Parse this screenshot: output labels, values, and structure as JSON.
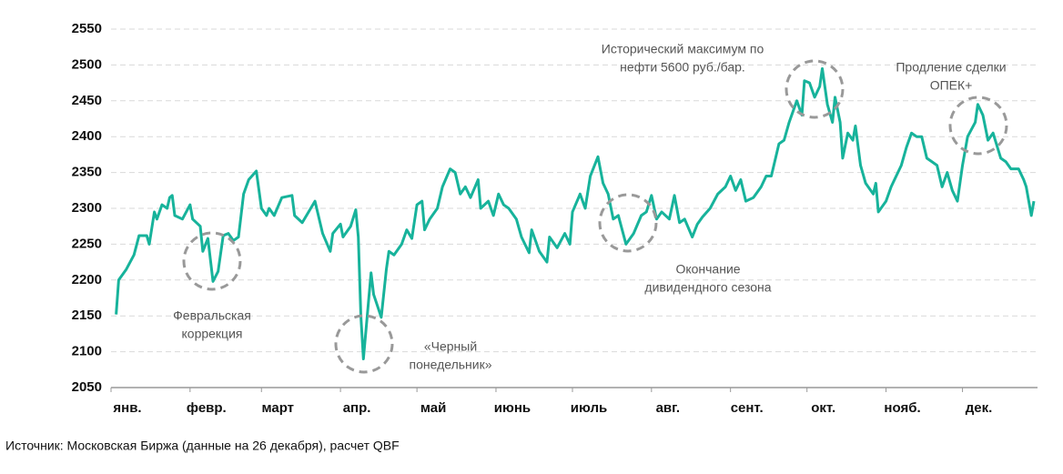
{
  "chart_data": {
    "type": "line",
    "x": [
      2,
      3,
      6,
      9,
      11,
      14,
      15,
      17,
      18,
      20,
      22,
      23,
      24,
      25,
      28,
      31,
      32,
      35,
      36,
      38,
      40,
      42,
      44,
      46,
      48,
      50,
      52,
      54,
      57,
      59,
      61,
      62,
      64,
      67,
      71,
      72,
      75,
      80,
      81,
      83,
      86,
      87,
      90,
      91,
      94,
      96,
      97,
      98,
      99,
      101,
      102,
      103,
      106,
      108,
      109,
      111,
      114,
      116,
      118,
      120,
      122,
      123,
      125,
      128,
      130,
      133,
      135,
      137,
      139,
      141,
      144,
      145,
      148,
      150,
      152,
      154,
      156,
      159,
      161,
      164,
      165,
      168,
      171,
      172,
      175,
      178,
      180,
      181,
      184,
      186,
      188,
      191,
      193,
      195,
      197,
      199,
      202,
      205,
      208,
      210,
      212,
      214,
      216,
      219,
      221,
      223,
      225,
      228,
      230,
      232,
      235,
      238,
      241,
      243,
      245,
      247,
      249,
      252,
      255,
      257,
      259,
      262,
      264,
      266,
      269,
      271,
      272,
      274,
      276,
      278,
      279,
      281,
      283,
      284,
      286,
      287,
      289,
      291,
      292,
      294,
      296,
      299,
      300,
      301,
      304,
      306,
      308,
      310,
      312,
      314,
      316,
      318,
      320,
      322,
      324,
      326,
      328,
      330,
      332,
      334,
      336,
      339,
      340,
      342,
      344,
      346,
      349,
      351,
      353,
      356,
      358,
      359,
      361,
      362
    ],
    "series": [
      {
        "color": "#17b39b",
        "values": [
          2152,
          2200,
          2215,
          2235,
          2262,
          2262,
          2250,
          2295,
          2285,
          2305,
          2300,
          2315,
          2318,
          2290,
          2285,
          2305,
          2285,
          2275,
          2240,
          2258,
          2198,
          2212,
          2262,
          2265,
          2255,
          2260,
          2320,
          2340,
          2352,
          2300,
          2290,
          2300,
          2290,
          2315,
          2318,
          2290,
          2280,
          2310,
          2295,
          2265,
          2240,
          2265,
          2278,
          2260,
          2275,
          2298,
          2260,
          2150,
          2090,
          2170,
          2210,
          2180,
          2148,
          2215,
          2240,
          2235,
          2250,
          2270,
          2258,
          2305,
          2310,
          2270,
          2285,
          2300,
          2330,
          2355,
          2350,
          2320,
          2330,
          2315,
          2340,
          2300,
          2310,
          2290,
          2320,
          2305,
          2300,
          2285,
          2260,
          2238,
          2270,
          2240,
          2225,
          2260,
          2245,
          2265,
          2250,
          2295,
          2320,
          2300,
          2345,
          2372,
          2335,
          2320,
          2285,
          2290,
          2250,
          2265,
          2290,
          2295,
          2318,
          2285,
          2295,
          2285,
          2318,
          2280,
          2285,
          2260,
          2278,
          2288,
          2300,
          2320,
          2330,
          2345,
          2325,
          2340,
          2310,
          2315,
          2330,
          2345,
          2345,
          2390,
          2395,
          2420,
          2450,
          2430,
          2478,
          2475,
          2455,
          2470,
          2495,
          2445,
          2420,
          2455,
          2420,
          2370,
          2405,
          2395,
          2415,
          2360,
          2335,
          2320,
          2335,
          2295,
          2310,
          2330,
          2345,
          2360,
          2385,
          2405,
          2400,
          2400,
          2370,
          2365,
          2360,
          2330,
          2350,
          2325,
          2310,
          2360,
          2400,
          2420,
          2445,
          2430,
          2395,
          2405,
          2370,
          2365,
          2355,
          2355,
          2340,
          2330,
          2290,
          2310
        ]
      }
    ],
    "xlim": [
      0,
      362
    ],
    "xticks": [
      {
        "value": 0,
        "label": "янв."
      },
      {
        "value": 31,
        "label": "февр."
      },
      {
        "value": 59,
        "label": "март"
      },
      {
        "value": 90,
        "label": "апр."
      },
      {
        "value": 120,
        "label": "май"
      },
      {
        "value": 151,
        "label": "июнь"
      },
      {
        "value": 181,
        "label": "июль"
      },
      {
        "value": 212,
        "label": "авг."
      },
      {
        "value": 243,
        "label": "сент."
      },
      {
        "value": 273,
        "label": "окт."
      },
      {
        "value": 304,
        "label": "нояб."
      },
      {
        "value": 334,
        "label": "дек."
      }
    ],
    "ylim": [
      2050,
      2550
    ],
    "yticks": [
      2050,
      2100,
      2150,
      2200,
      2250,
      2300,
      2350,
      2400,
      2450,
      2500,
      2550
    ],
    "grid": true,
    "annotations": [
      [
        "Февральская",
        "коррекция"
      ],
      [
        "«Черный",
        "понедельник»"
      ],
      [
        "Окончание",
        "дивидендного сезона"
      ],
      [
        "Исторический максимум по",
        "нефти 5600 руб./бар."
      ],
      [
        "Продление сделки",
        "ОПЕК+"
      ]
    ],
    "source": "Источник: Московская Биржа (данные на 26 декабря), расчет QBF"
  }
}
